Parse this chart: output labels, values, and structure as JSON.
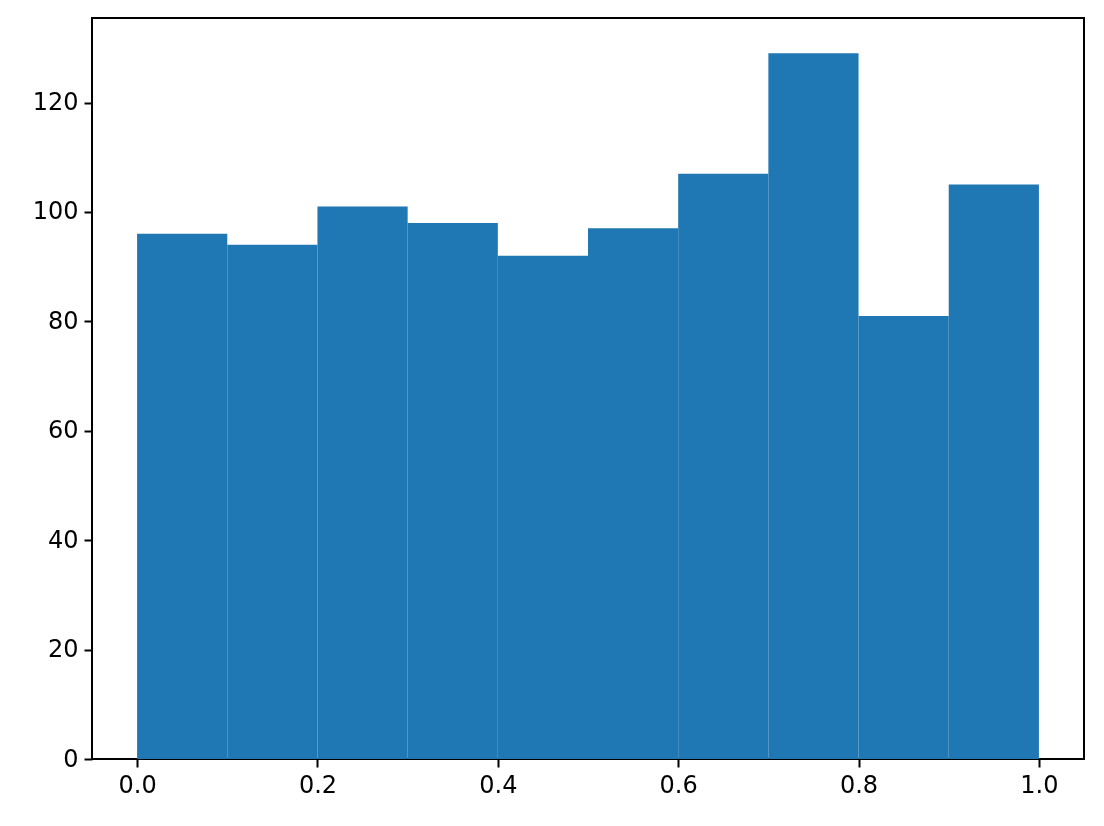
{
  "chart_data": {
    "type": "histogram",
    "bins": [
      0.0,
      0.1,
      0.2,
      0.3,
      0.4,
      0.5,
      0.6,
      0.7,
      0.8,
      0.9,
      1.0
    ],
    "values": [
      96,
      94,
      101,
      98,
      92,
      97,
      107,
      129,
      81,
      105
    ],
    "color": "#1f77b4",
    "xlim": [
      -0.05,
      1.05
    ],
    "ylim": [
      0,
      135.45
    ],
    "xticks": [
      {
        "value": 0,
        "label": "0.0"
      },
      {
        "value": 0.2,
        "label": "0.2"
      },
      {
        "value": 0.4,
        "label": "0.4"
      },
      {
        "value": 0.6,
        "label": "0.6"
      },
      {
        "value": 0.8,
        "label": "0.8"
      },
      {
        "value": 1,
        "label": "1.0"
      }
    ],
    "yticks": [
      0,
      20,
      40,
      60,
      80,
      100,
      120
    ]
  }
}
